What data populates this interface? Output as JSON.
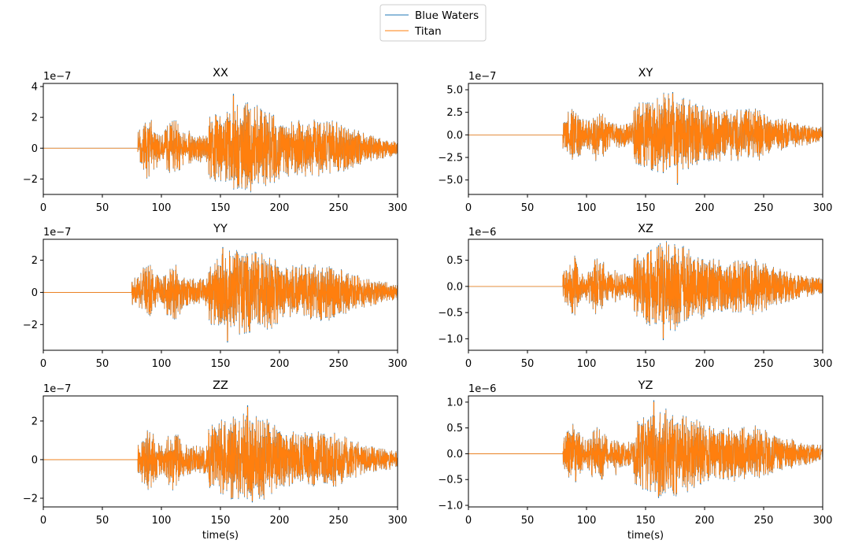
{
  "legend": {
    "placement": "top-center",
    "entries": [
      {
        "name": "Blue Waters",
        "color": "#1f77b4"
      },
      {
        "name": "Titan",
        "color": "#ff7f0e"
      }
    ]
  },
  "chart_data": [
    {
      "type": "line",
      "title": "XX",
      "xlabel": "",
      "ylabel": "",
      "scale_label": "1e−7",
      "xlim": [
        0,
        300
      ],
      "ylim": [
        -3,
        4.2
      ],
      "xticks": [
        0,
        50,
        100,
        150,
        200,
        250,
        300
      ],
      "xtick_labels": [
        "0",
        "50",
        "100",
        "150",
        "200",
        "250",
        "300"
      ],
      "yticks": [
        -2,
        0,
        2,
        4
      ],
      "ytick_labels": [
        "−2",
        "0",
        "2",
        "4"
      ],
      "onset": 80,
      "peak": 3.5,
      "trough": -2.4,
      "seed": 11,
      "series": [
        {
          "name": "Blue Waters",
          "color": "#1f77b4"
        },
        {
          "name": "Titan",
          "color": "#ff7f0e"
        }
      ]
    },
    {
      "type": "line",
      "title": "XY",
      "xlabel": "",
      "ylabel": "",
      "scale_label": "1e−7",
      "xlim": [
        0,
        300
      ],
      "ylim": [
        -6.6,
        5.7
      ],
      "xticks": [
        0,
        50,
        100,
        150,
        200,
        250,
        300
      ],
      "xtick_labels": [
        "0",
        "50",
        "100",
        "150",
        "200",
        "250",
        "300"
      ],
      "yticks": [
        -5,
        -2.5,
        0,
        2.5,
        5
      ],
      "ytick_labels": [
        "−5.0",
        "−2.5",
        "0.0",
        "2.5",
        "5.0"
      ],
      "onset": 80,
      "peak": 4.7,
      "trough": -5.5,
      "seed": 23,
      "series": [
        {
          "name": "Blue Waters",
          "color": "#1f77b4"
        },
        {
          "name": "Titan",
          "color": "#ff7f0e"
        }
      ]
    },
    {
      "type": "line",
      "title": "YY",
      "xlabel": "",
      "ylabel": "",
      "scale_label": "1e−7",
      "xlim": [
        0,
        300
      ],
      "ylim": [
        -3.6,
        3.3
      ],
      "xticks": [
        0,
        50,
        100,
        150,
        200,
        250,
        300
      ],
      "xtick_labels": [
        "0",
        "50",
        "100",
        "150",
        "200",
        "250",
        "300"
      ],
      "yticks": [
        -2,
        0,
        2
      ],
      "ytick_labels": [
        "−2",
        "0",
        "2"
      ],
      "onset": 75,
      "peak": 2.8,
      "trough": -3.1,
      "seed": 37,
      "series": [
        {
          "name": "Blue Waters",
          "color": "#1f77b4"
        },
        {
          "name": "Titan",
          "color": "#ff7f0e"
        }
      ]
    },
    {
      "type": "line",
      "title": "XZ",
      "xlabel": "",
      "ylabel": "",
      "scale_label": "1e−6",
      "xlim": [
        0,
        300
      ],
      "ylim": [
        -1.22,
        0.9
      ],
      "xticks": [
        0,
        50,
        100,
        150,
        200,
        250,
        300
      ],
      "xtick_labels": [
        "0",
        "50",
        "100",
        "150",
        "200",
        "250",
        "300"
      ],
      "yticks": [
        -1,
        -0.5,
        0,
        0.5
      ],
      "ytick_labels": [
        "−1.0",
        "−0.5",
        "0.0",
        "0.5"
      ],
      "onset": 80,
      "peak": 0.78,
      "trough": -1.02,
      "seed": 41,
      "series": [
        {
          "name": "Blue Waters",
          "color": "#1f77b4"
        },
        {
          "name": "Titan",
          "color": "#ff7f0e"
        }
      ]
    },
    {
      "type": "line",
      "title": "ZZ",
      "xlabel": "time(s)",
      "ylabel": "",
      "scale_label": "1e−7",
      "xlim": [
        0,
        300
      ],
      "ylim": [
        -2.45,
        3.3
      ],
      "xticks": [
        0,
        50,
        100,
        150,
        200,
        250,
        300
      ],
      "xtick_labels": [
        "0",
        "50",
        "100",
        "150",
        "200",
        "250",
        "300"
      ],
      "yticks": [
        -2,
        0,
        2
      ],
      "ytick_labels": [
        "−2",
        "0",
        "2"
      ],
      "onset": 80,
      "peak": 2.8,
      "trough": -2.2,
      "seed": 53,
      "series": [
        {
          "name": "Blue Waters",
          "color": "#1f77b4"
        },
        {
          "name": "Titan",
          "color": "#ff7f0e"
        }
      ]
    },
    {
      "type": "line",
      "title": "YZ",
      "xlabel": "time(s)",
      "ylabel": "",
      "scale_label": "1e−6",
      "xlim": [
        0,
        300
      ],
      "ylim": [
        -1.03,
        1.12
      ],
      "xticks": [
        0,
        50,
        100,
        150,
        200,
        250,
        300
      ],
      "xtick_labels": [
        "0",
        "50",
        "100",
        "150",
        "200",
        "250",
        "300"
      ],
      "yticks": [
        -1,
        -0.5,
        0,
        0.5,
        1
      ],
      "ytick_labels": [
        "−1.0",
        "−0.5",
        "0.0",
        "0.5",
        "1.0"
      ],
      "onset": 80,
      "peak": 1.03,
      "trough": -0.85,
      "seed": 67,
      "series": [
        {
          "name": "Blue Waters",
          "color": "#1f77b4"
        },
        {
          "name": "Titan",
          "color": "#ff7f0e"
        }
      ]
    }
  ]
}
